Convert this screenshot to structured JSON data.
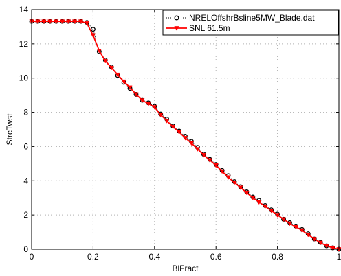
{
  "chart_data": {
    "type": "line",
    "xlabel": "BlFract",
    "ylabel": "StrcTwst",
    "xlim": [
      0,
      1
    ],
    "ylim": [
      0,
      14
    ],
    "xticks": [
      0,
      0.2,
      0.4,
      0.6,
      0.8,
      1
    ],
    "yticks": [
      0,
      2,
      4,
      6,
      8,
      10,
      12,
      14
    ],
    "xtick_labels": [
      "0",
      "0.2",
      "0.4",
      "0.6",
      "0.8",
      "1"
    ],
    "ytick_labels": [
      "0",
      "2",
      "4",
      "6",
      "8",
      "10",
      "12",
      "14"
    ],
    "grid": true,
    "legend_position": "top-right",
    "series": [
      {
        "name": "NRELOffshrBsline5MW_Blade.dat",
        "color": "#000000",
        "line_style": "dotted",
        "marker": "circle",
        "x": [
          0,
          0.02,
          0.04,
          0.06,
          0.08,
          0.1,
          0.12,
          0.14,
          0.16,
          0.18,
          0.2,
          0.22,
          0.24,
          0.26,
          0.28,
          0.3,
          0.32,
          0.34,
          0.36,
          0.38,
          0.4,
          0.42,
          0.44,
          0.46,
          0.48,
          0.5,
          0.52,
          0.54,
          0.56,
          0.58,
          0.6,
          0.62,
          0.64,
          0.66,
          0.68,
          0.7,
          0.72,
          0.74,
          0.76,
          0.78,
          0.8,
          0.82,
          0.84,
          0.86,
          0.88,
          0.9,
          0.92,
          0.94,
          0.96,
          0.98,
          1.0
        ],
        "y": [
          13.31,
          13.31,
          13.31,
          13.31,
          13.31,
          13.31,
          13.31,
          13.31,
          13.31,
          13.25,
          12.85,
          11.55,
          11.05,
          10.65,
          10.15,
          9.75,
          9.4,
          9.05,
          8.7,
          8.55,
          8.35,
          7.9,
          7.6,
          7.2,
          6.9,
          6.6,
          6.3,
          5.95,
          5.55,
          5.25,
          4.95,
          4.6,
          4.3,
          3.95,
          3.65,
          3.35,
          3.05,
          2.85,
          2.55,
          2.3,
          2.05,
          1.75,
          1.55,
          1.35,
          1.15,
          0.9,
          0.6,
          0.4,
          0.2,
          0.08,
          0.0
        ]
      },
      {
        "name": "SNL 61.5m",
        "color": "#ff0000",
        "line_style": "solid",
        "marker": "triangle-down",
        "x": [
          0,
          0.02,
          0.04,
          0.06,
          0.08,
          0.1,
          0.12,
          0.14,
          0.16,
          0.18,
          0.2,
          0.22,
          0.24,
          0.26,
          0.28,
          0.3,
          0.32,
          0.34,
          0.36,
          0.38,
          0.4,
          0.42,
          0.44,
          0.46,
          0.48,
          0.5,
          0.52,
          0.54,
          0.56,
          0.58,
          0.6,
          0.62,
          0.64,
          0.66,
          0.68,
          0.7,
          0.72,
          0.74,
          0.76,
          0.78,
          0.8,
          0.82,
          0.84,
          0.86,
          0.88,
          0.9,
          0.92,
          0.94,
          0.96,
          0.98,
          1.0
        ],
        "y": [
          13.31,
          13.31,
          13.31,
          13.31,
          13.31,
          13.31,
          13.31,
          13.31,
          13.31,
          13.2,
          12.5,
          11.6,
          11.0,
          10.6,
          10.2,
          9.8,
          9.45,
          9.05,
          8.7,
          8.5,
          8.3,
          7.85,
          7.5,
          7.15,
          6.85,
          6.5,
          6.2,
          5.85,
          5.5,
          5.2,
          4.9,
          4.55,
          4.2,
          3.9,
          3.6,
          3.3,
          3.0,
          2.75,
          2.5,
          2.25,
          2.0,
          1.75,
          1.5,
          1.3,
          1.1,
          0.85,
          0.6,
          0.38,
          0.2,
          0.08,
          0.0
        ]
      }
    ]
  }
}
